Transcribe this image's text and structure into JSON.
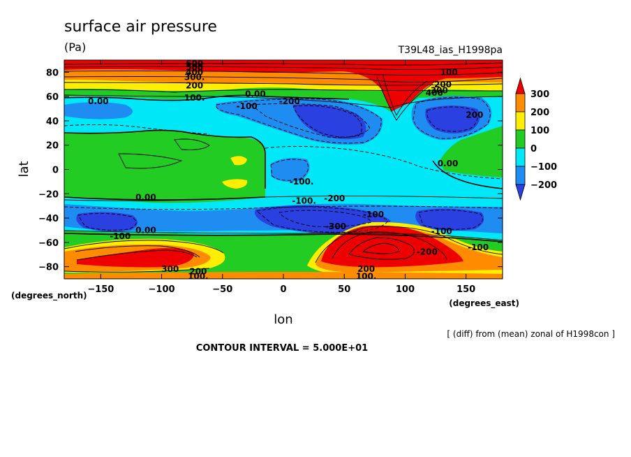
{
  "chart_data": {
    "type": "heatmap",
    "subtype": "filled contour map",
    "title": "surface air pressure",
    "units": "(Pa)",
    "run_label": "T39L48_ias_H1998pa",
    "xlabel": "lon",
    "ylabel": "lat",
    "x_units_label": "(degrees_east)",
    "y_units_label": "(degrees_north)",
    "xlim": [
      -180,
      180
    ],
    "ylim": [
      -90,
      90
    ],
    "x_ticks": [
      -150,
      -100,
      -50,
      0,
      50,
      100,
      150
    ],
    "y_ticks": [
      80,
      60,
      40,
      20,
      0,
      -20,
      -40,
      -60,
      -80
    ],
    "contour_interval_text": "CONTOUR INTERVAL = 5.000E+01",
    "diff_note": "[ (diff) from (mean) zonal of H1998con ]",
    "colorbar": {
      "levels": [
        300,
        200,
        100,
        0,
        -100,
        -200
      ],
      "colors": [
        "#ee0000",
        "#ff8c00",
        "#ffee00",
        "#22cc22",
        "#00e8f8",
        "#1e8cf0",
        "#2a40e0"
      ]
    },
    "contour_labels": [
      {
        "text": "600",
        "lon": -73,
        "lat": 87
      },
      {
        "text": "500",
        "lon": -73,
        "lat": 84
      },
      {
        "text": "400",
        "lon": -73,
        "lat": 80
      },
      {
        "text": "300.",
        "lon": -73,
        "lat": 76
      },
      {
        "text": "200",
        "lon": -73,
        "lat": 69
      },
      {
        "text": "100.",
        "lon": -73,
        "lat": 59
      },
      {
        "text": "0.00",
        "lon": -152,
        "lat": 56
      },
      {
        "text": "0.00",
        "lon": -23,
        "lat": 62
      },
      {
        "text": "-100",
        "lon": -30,
        "lat": 52
      },
      {
        "text": "-200",
        "lon": 5,
        "lat": 56
      },
      {
        "text": "100",
        "lon": 136,
        "lat": 80
      },
      {
        "text": "200",
        "lon": 131,
        "lat": 70
      },
      {
        "text": "300",
        "lon": 128,
        "lat": 65
      },
      {
        "text": "400",
        "lon": 124,
        "lat": 63
      },
      {
        "text": "200",
        "lon": 157,
        "lat": 45
      },
      {
        "text": "0.00",
        "lon": 135,
        "lat": 5
      },
      {
        "text": "-100.",
        "lon": 15,
        "lat": -10
      },
      {
        "text": "-100.",
        "lon": 17,
        "lat": -26
      },
      {
        "text": "-200",
        "lon": 42,
        "lat": -24
      },
      {
        "text": "0.00",
        "lon": -113,
        "lat": -23
      },
      {
        "text": "-300",
        "lon": 43,
        "lat": -47
      },
      {
        "text": "-100",
        "lon": 74,
        "lat": -37
      },
      {
        "text": "-100",
        "lon": -134,
        "lat": -55
      },
      {
        "text": "0.00",
        "lon": -113,
        "lat": -50
      },
      {
        "text": "-100",
        "lon": 130,
        "lat": -51
      },
      {
        "text": "-100",
        "lon": 160,
        "lat": -64
      },
      {
        "text": "-200",
        "lon": 118,
        "lat": -68
      },
      {
        "text": "300",
        "lon": -93,
        "lat": -82
      },
      {
        "text": "200",
        "lon": -70,
        "lat": -84
      },
      {
        "text": "100.",
        "lon": -70,
        "lat": -88
      },
      {
        "text": "200",
        "lon": 68,
        "lat": -82
      },
      {
        "text": "100.",
        "lon": 68,
        "lat": -88
      }
    ]
  }
}
